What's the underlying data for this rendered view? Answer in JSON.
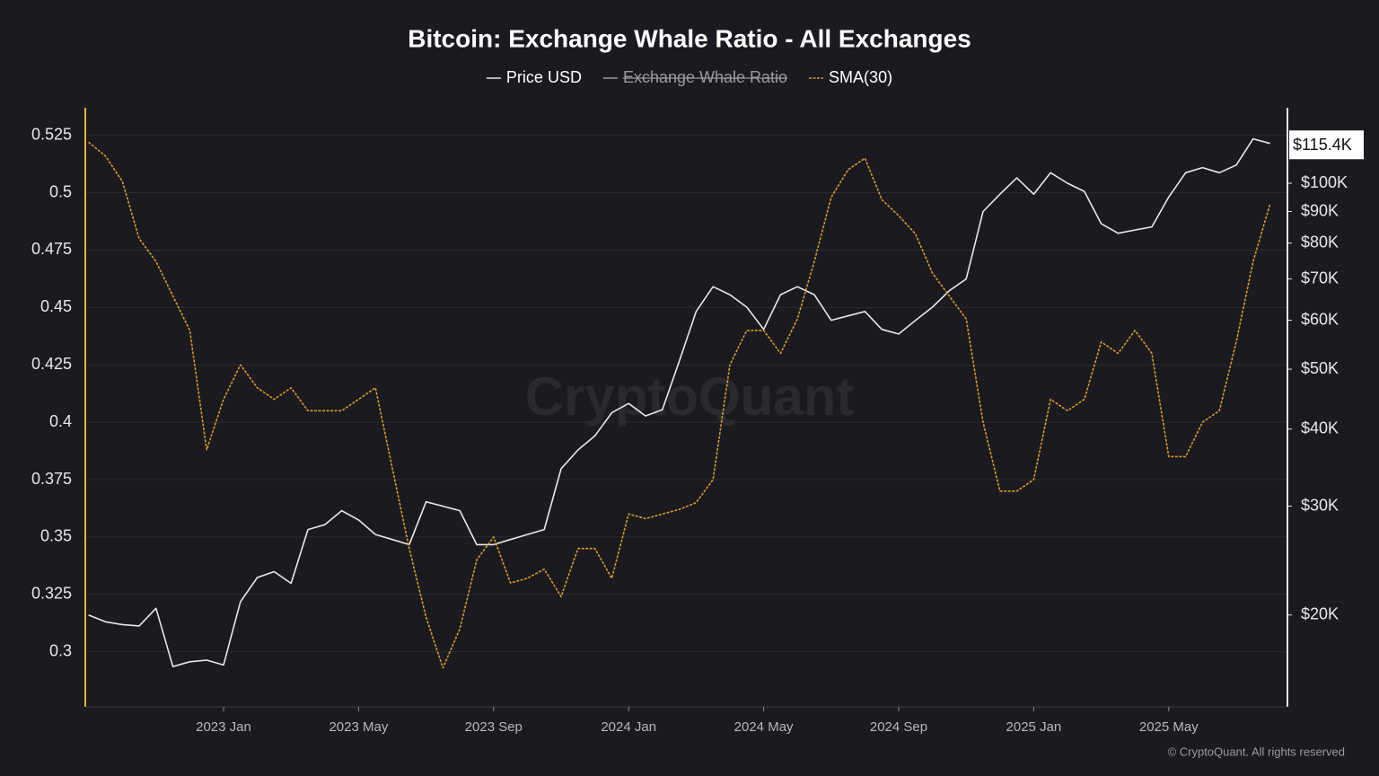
{
  "chart_data": {
    "type": "line",
    "title": "Bitcoin: Exchange Whale Ratio - All Exchanges",
    "watermark": "CryptoQuant",
    "copyright": "© CryptoQuant. All rights reserved",
    "x": [
      null,
      null,
      null,
      null,
      null,
      null,
      null,
      null,
      "2023 Jan",
      null,
      null,
      null,
      null,
      null,
      null,
      null,
      "2023 May",
      null,
      null,
      null,
      null,
      null,
      null,
      null,
      "2023 Sep",
      null,
      null,
      null,
      null,
      null,
      null,
      null,
      "2024 Jan",
      null,
      null,
      null,
      null,
      null,
      null,
      null,
      "2024 May",
      null,
      null,
      null,
      null,
      null,
      null,
      null,
      "2024 Sep",
      null,
      null,
      null,
      null,
      null,
      null,
      null,
      "2025 Jan",
      null,
      null,
      null,
      null,
      null,
      null,
      null,
      "2025 May",
      null,
      null,
      null,
      null,
      null,
      null
    ],
    "series": [
      {
        "name": "Price USD",
        "color": "#e8e8e8",
        "axis": "y2",
        "visible": true,
        "values": [
          20000,
          19500,
          19300,
          19200,
          20500,
          16500,
          16800,
          16900,
          16600,
          21000,
          23000,
          23500,
          22500,
          27500,
          28000,
          29500,
          28500,
          27000,
          26500,
          26000,
          30500,
          30000,
          29500,
          26000,
          26000,
          26500,
          27000,
          27500,
          34500,
          37000,
          39000,
          42500,
          44000,
          42000,
          43000,
          51500,
          62000,
          68000,
          66000,
          63000,
          58000,
          66000,
          68000,
          66000,
          60000,
          61000,
          62000,
          58000,
          57000,
          60000,
          63000,
          67000,
          70000,
          90000,
          96000,
          102000,
          96000,
          104000,
          100000,
          97000,
          86000,
          83000,
          84000,
          85000,
          95000,
          104000,
          106000,
          104000,
          107000,
          118000,
          116000
        ]
      },
      {
        "name": "Exchange Whale Ratio",
        "color": "#9a9aa0",
        "visible": false
      },
      {
        "name": "SMA(30)",
        "color": "#d99a2b",
        "visible": true,
        "values": [
          0.522,
          0.516,
          0.505,
          0.48,
          0.47,
          0.455,
          0.44,
          0.388,
          0.41,
          0.425,
          0.415,
          0.41,
          0.415,
          0.405,
          0.405,
          0.405,
          0.41,
          0.415,
          0.38,
          0.345,
          0.315,
          0.293,
          0.31,
          0.34,
          0.35,
          0.33,
          0.332,
          0.336,
          0.324,
          0.345,
          0.345,
          0.332,
          0.36,
          0.358,
          0.36,
          0.362,
          0.365,
          0.375,
          0.425,
          0.44,
          0.44,
          0.43,
          0.445,
          0.47,
          0.498,
          0.51,
          0.515,
          0.497,
          0.49,
          0.482,
          0.465,
          0.455,
          0.445,
          0.4,
          0.37,
          0.37,
          0.375,
          0.41,
          0.405,
          0.41,
          0.435,
          0.43,
          0.44,
          0.43,
          0.385,
          0.385,
          0.4,
          0.405,
          0.435,
          0.47,
          0.495
        ]
      }
    ],
    "ylim": [
      0.276,
      0.537
    ],
    "yticks": [
      0.3,
      0.325,
      0.35,
      0.375,
      0.4,
      0.425,
      0.45,
      0.475,
      0.5,
      0.525
    ],
    "y2lim": [
      14200,
      132500
    ],
    "y2scale": "log",
    "y2ticks": [
      {
        "value": 20000,
        "label": "$20K"
      },
      {
        "value": 30000,
        "label": "$30K"
      },
      {
        "value": 40000,
        "label": "$40K"
      },
      {
        "value": 50000,
        "label": "$50K"
      },
      {
        "value": 60000,
        "label": "$60K"
      },
      {
        "value": 70000,
        "label": "$70K"
      },
      {
        "value": 80000,
        "label": "$80K"
      },
      {
        "value": 90000,
        "label": "$90K"
      },
      {
        "value": 100000,
        "label": "$100K"
      }
    ],
    "last_price": {
      "value": 115400,
      "label": "$115.4K"
    },
    "grid": true,
    "legend": "top"
  }
}
